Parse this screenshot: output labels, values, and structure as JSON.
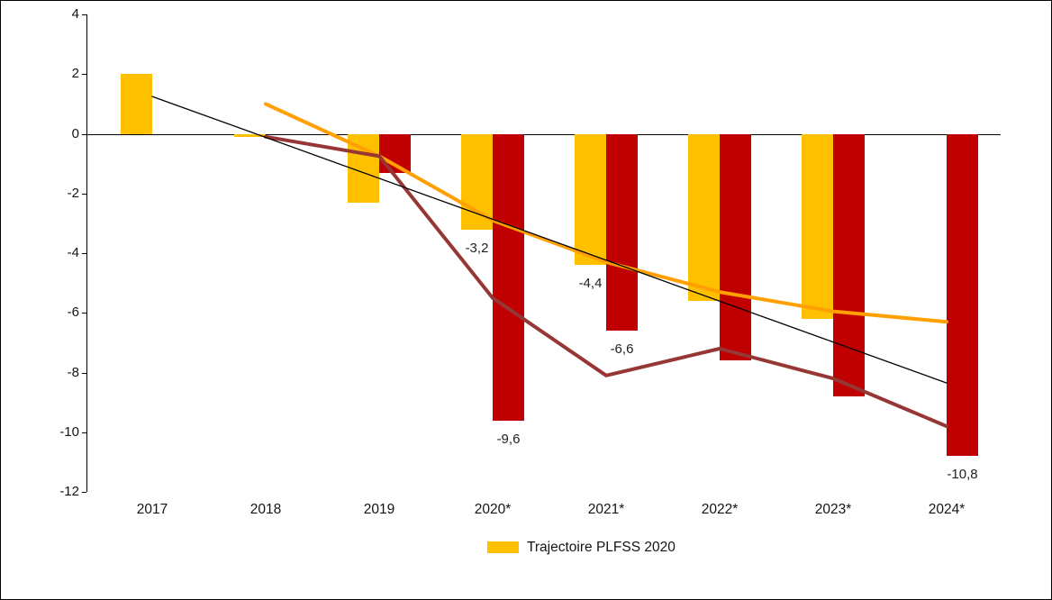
{
  "chart_data": {
    "type": "combo",
    "title": "",
    "categories": [
      "2017",
      "2018",
      "2019",
      "2020*",
      "2021*",
      "2022*",
      "2023*",
      "2024*"
    ],
    "y_axis": {
      "min": -12,
      "max": 4,
      "step": 2,
      "tick_labels": [
        "4",
        "2",
        "0",
        "-2",
        "-4",
        "-6",
        "-8",
        "-10",
        "-12"
      ]
    },
    "grid": "off",
    "series": [
      {
        "id": "gold-bars",
        "legend_label": "Trajectoire PLFSS 2020",
        "type": "bar",
        "color": "#FFC000",
        "values": [
          2.0,
          -0.1,
          -2.3,
          -3.2,
          -4.4,
          -5.6,
          -6.2,
          null
        ]
      },
      {
        "id": "red-bars",
        "type": "bar",
        "color": "#C00000",
        "values": [
          null,
          null,
          -1.3,
          -9.6,
          -6.6,
          -7.6,
          -8.8,
          -10.8
        ]
      },
      {
        "id": "orange-line",
        "type": "line",
        "color": "#FFA000",
        "stroke_width": 4,
        "values": [
          null,
          1.0,
          -0.75,
          -2.9,
          -4.3,
          -5.3,
          -5.95,
          -6.3
        ]
      },
      {
        "id": "dark-red-line",
        "type": "line",
        "color": "#963735",
        "stroke_width": 4,
        "values": [
          null,
          -0.1,
          -0.75,
          -5.5,
          -8.1,
          -7.2,
          -8.2,
          -9.8
        ]
      },
      {
        "id": "black-trend-line",
        "type": "line",
        "color": "#000000",
        "stroke_width": 1.3,
        "values": [
          1.25,
          null,
          null,
          null,
          null,
          null,
          null,
          -8.35
        ]
      }
    ],
    "data_labels": [
      {
        "series_index": 0,
        "category_index": 3,
        "text": "-3,2"
      },
      {
        "series_index": 0,
        "category_index": 4,
        "text": "-4,4"
      },
      {
        "series_index": 1,
        "category_index": 3,
        "text": "-9,6"
      },
      {
        "series_index": 1,
        "category_index": 4,
        "text": "-6,6"
      },
      {
        "series_index": 1,
        "category_index": 7,
        "text": "-10,8"
      }
    ],
    "legend": {
      "position": "bottom",
      "label": "Trajectoire PLFSS 2020",
      "swatch_color": "#FFC000"
    }
  }
}
